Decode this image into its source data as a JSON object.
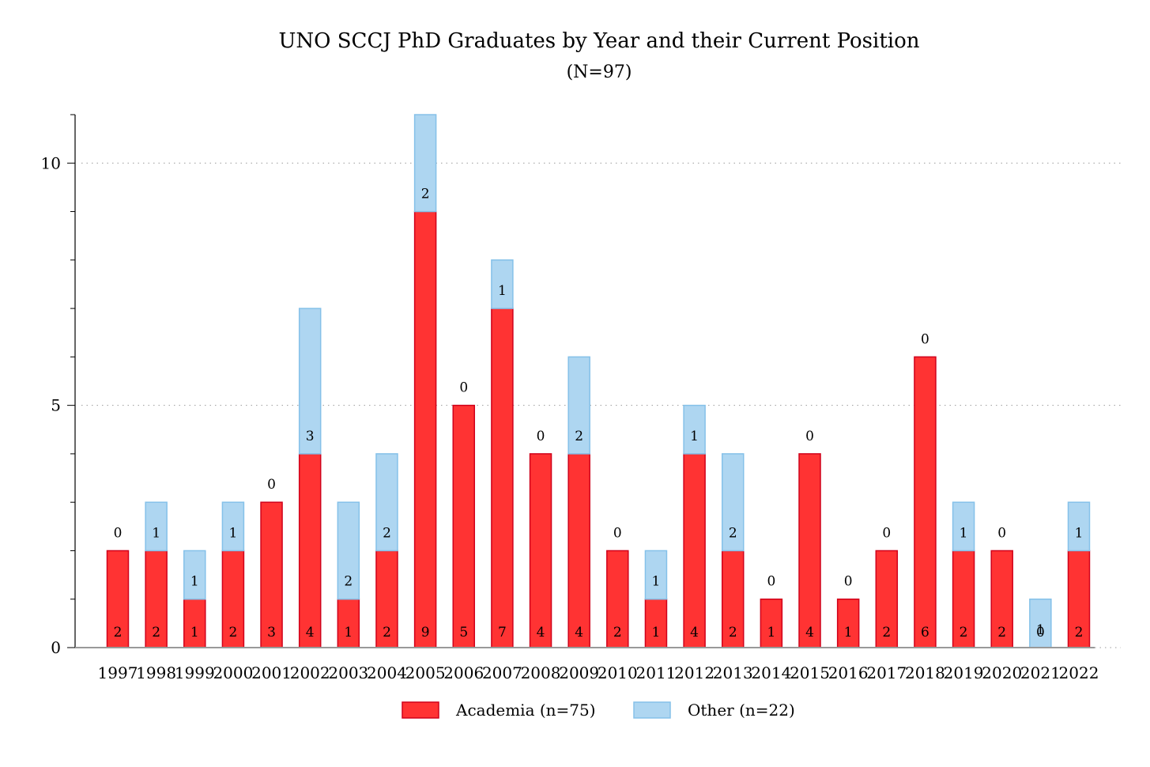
{
  "chart_data": {
    "type": "bar",
    "stacked": true,
    "title": "UNO SCCJ PhD Graduates by Year and their Current Position",
    "subtitle": "(N=97)",
    "xlabel": "",
    "ylabel": "",
    "ylim": [
      0,
      11
    ],
    "yticks": [
      0,
      5,
      10
    ],
    "grid": true,
    "legend_position": "bottom",
    "categories": [
      "1997",
      "1998",
      "1999",
      "2000",
      "2001",
      "2002",
      "2003",
      "2004",
      "2005",
      "2006",
      "2007",
      "2008",
      "2009",
      "2010",
      "2011",
      "2012",
      "2013",
      "2014",
      "2015",
      "2016",
      "2017",
      "2018",
      "2019",
      "2020",
      "2021",
      "2022"
    ],
    "series": [
      {
        "name": "Academia (n=75)",
        "color": "#ff3333",
        "stroke": "#d0021b",
        "values": [
          2,
          2,
          1,
          2,
          3,
          4,
          1,
          2,
          9,
          5,
          7,
          4,
          4,
          2,
          1,
          4,
          2,
          1,
          4,
          1,
          2,
          6,
          2,
          2,
          0,
          2
        ]
      },
      {
        "name": "Other (n=22)",
        "color": "#aed6f1",
        "stroke": "#85c1e9",
        "values": [
          0,
          1,
          1,
          1,
          0,
          3,
          2,
          2,
          2,
          0,
          1,
          0,
          2,
          0,
          1,
          1,
          2,
          0,
          0,
          0,
          0,
          0,
          1,
          0,
          1,
          1
        ]
      }
    ]
  }
}
